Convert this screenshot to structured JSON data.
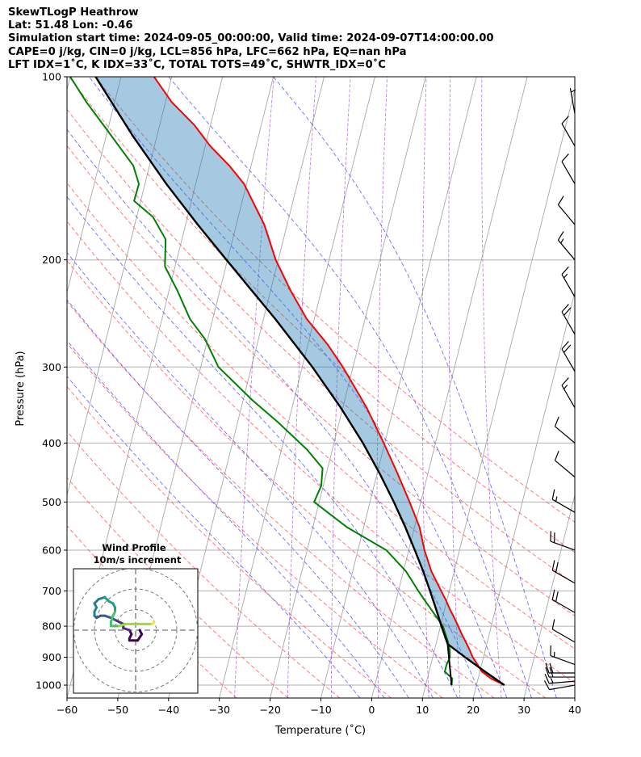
{
  "header": {
    "line1": "SkewTLogP Heathrow",
    "line2": "Lat: 51.48   Lon: -0.46",
    "line3": "Simulation start time: 2024-09-05_00:00:00, Valid time: 2024-09-07T14:00:00.00",
    "line4": "CAPE=0 j/kg, CIN=0 j/kg, LCL=856 hPa, LFC=662 hPa, EQ=nan hPa",
    "line5": "LFT IDX=1$^\\circ$C, K IDX=33$^\\circ$C, TOTAL TOTS=49$^\\circ$C, SHWTR_IDX=0$^\\circ$C"
  },
  "header_display": {
    "line5": "LFT IDX=1˚C, K IDX=33˚C, TOTAL TOTS=49˚C, SHWTR_IDX=0˚C"
  },
  "chart_data": {
    "type": "skewt-logp",
    "xlabel": "Temperature (˚C)",
    "ylabel": "Pressure (hPa)",
    "xlim": [
      -60,
      40
    ],
    "ylim": [
      1050,
      100
    ],
    "skew_per_decade_c": 30,
    "x_ticks": [
      "−60",
      "−50",
      "−40",
      "−30",
      "−20",
      "−10",
      "0",
      "10",
      "20",
      "30",
      "40"
    ],
    "x_tick_values": [
      -60,
      -50,
      -40,
      -30,
      -20,
      -10,
      0,
      10,
      20,
      30,
      40
    ],
    "y_ticks": [
      "100",
      "200",
      "300",
      "400",
      "500",
      "600",
      "700",
      "800",
      "900",
      "1000"
    ],
    "y_tick_values": [
      100,
      200,
      300,
      400,
      500,
      600,
      700,
      800,
      900,
      1000
    ],
    "isotherms": [
      -140,
      -130,
      -120,
      -110,
      -100,
      -90,
      -80,
      -70,
      -60,
      -50,
      -40,
      -30,
      -20,
      -10,
      0,
      10,
      20,
      30,
      40
    ],
    "dry_adiabats_c": [
      -30,
      -20,
      -10,
      0,
      10,
      20,
      30,
      40,
      50,
      60,
      70,
      80,
      90
    ],
    "moist_adiabats_c": [
      -5,
      0,
      5,
      10,
      15,
      20,
      25,
      30,
      35
    ],
    "mixing_ratios_gkg": [
      0.4,
      1,
      2,
      4,
      8,
      12,
      20
    ],
    "temperature": {
      "color": "#ff0000",
      "p": [
        1000,
        975,
        950,
        925,
        900,
        875,
        850,
        825,
        800,
        775,
        750,
        725,
        700,
        650,
        600,
        550,
        500,
        450,
        400,
        350,
        300,
        275,
        250,
        225,
        200,
        175,
        150,
        140,
        130,
        120,
        110,
        100
      ],
      "t": [
        25.5,
        22.5,
        20.4,
        19.2,
        17.9,
        16.9,
        15.8,
        14.6,
        13.5,
        12.3,
        11.0,
        9.8,
        8.4,
        5.5,
        3.1,
        1.0,
        -2.2,
        -5.9,
        -10.2,
        -15.3,
        -22.0,
        -26.2,
        -31.5,
        -36.0,
        -40.5,
        -44.5,
        -50.5,
        -54.3,
        -59.0,
        -63.2,
        -68.8,
        -73.5
      ]
    },
    "dewpoint": {
      "color": "#008000",
      "p": [
        1000,
        975,
        950,
        925,
        900,
        875,
        850,
        825,
        800,
        775,
        750,
        725,
        700,
        650,
        600,
        550,
        500,
        470,
        440,
        410,
        370,
        340,
        300,
        270,
        250,
        225,
        205,
        185,
        170,
        160,
        150,
        140,
        130,
        120,
        110,
        100
      ],
      "t": [
        15.1,
        14.9,
        13.1,
        13.1,
        13.4,
        13.0,
        12.3,
        11.4,
        10.5,
        8.9,
        7.3,
        5.6,
        3.9,
        0.5,
        -4.4,
        -13.3,
        -21.0,
        -20.4,
        -21.0,
        -25.0,
        -32.0,
        -38.2,
        -46.5,
        -50.5,
        -54.5,
        -58.3,
        -62.0,
        -63.2,
        -66.8,
        -71.3,
        -71.2,
        -73.2,
        -77.0,
        -81.1,
        -85.6,
        -90.0
      ]
    },
    "parcel_profile": {
      "color": "#000000",
      "p": [
        1000,
        950,
        900,
        856,
        800,
        750,
        700,
        650,
        600,
        550,
        500,
        450,
        400,
        350,
        300,
        250,
        200,
        175,
        150,
        125,
        100
      ],
      "t": [
        25.5,
        21.0,
        16.4,
        12.3,
        10.2,
        8.3,
        6.2,
        3.9,
        1.2,
        -1.8,
        -5.3,
        -9.4,
        -14.3,
        -20.4,
        -28.0,
        -37.7,
        -50.2,
        -57.6,
        -65.8,
        -74.8,
        -85.0
      ]
    },
    "lcl_segment": {
      "color": "#000000",
      "p": [
        1000,
        856
      ],
      "t": [
        15.1,
        12.3
      ]
    },
    "cape_cin_shading": {
      "color": "#1f77b4",
      "note": "area between parcel and environment temperature"
    },
    "wind_barbs": [
      {
        "p": 1000,
        "speed_kt": 10,
        "dir_deg": 260
      },
      {
        "p": 985,
        "speed_kt": 15,
        "dir_deg": 265
      },
      {
        "p": 970,
        "speed_kt": 20,
        "dir_deg": 270
      },
      {
        "p": 955,
        "speed_kt": 20,
        "dir_deg": 270
      },
      {
        "p": 925,
        "speed_kt": 15,
        "dir_deg": 290
      },
      {
        "p": 850,
        "speed_kt": 10,
        "dir_deg": 300
      },
      {
        "p": 760,
        "speed_kt": 20,
        "dir_deg": 300
      },
      {
        "p": 680,
        "speed_kt": 20,
        "dir_deg": 300
      },
      {
        "p": 600,
        "speed_kt": 20,
        "dir_deg": 290
      },
      {
        "p": 520,
        "speed_kt": 15,
        "dir_deg": 300
      },
      {
        "p": 455,
        "speed_kt": 10,
        "dir_deg": 310
      },
      {
        "p": 400,
        "speed_kt": 10,
        "dir_deg": 310
      },
      {
        "p": 350,
        "speed_kt": 15,
        "dir_deg": 330
      },
      {
        "p": 305,
        "speed_kt": 20,
        "dir_deg": 330
      },
      {
        "p": 265,
        "speed_kt": 20,
        "dir_deg": 330
      },
      {
        "p": 230,
        "speed_kt": 15,
        "dir_deg": 330
      },
      {
        "p": 200,
        "speed_kt": 15,
        "dir_deg": 320
      },
      {
        "p": 175,
        "speed_kt": 10,
        "dir_deg": 320
      },
      {
        "p": 150,
        "speed_kt": 10,
        "dir_deg": 330
      },
      {
        "p": 130,
        "speed_kt": 10,
        "dir_deg": 330
      },
      {
        "p": 115,
        "speed_kt": 5,
        "dir_deg": 350
      }
    ],
    "hodograph": {
      "title": "Wind Profile",
      "subtitle": "10m/s increment",
      "ring_radii_ms": [
        10,
        20,
        30
      ],
      "u": [
        2,
        3,
        1,
        -3,
        -3,
        -2,
        -3,
        -6,
        -6,
        -6,
        -8,
        -10,
        -12,
        -15,
        -17,
        -19,
        -20,
        -20,
        -19,
        -20,
        -18,
        -15,
        -14,
        -13,
        -11,
        -10,
        -10,
        -11,
        -12,
        -12,
        -10,
        -8,
        -5,
        -2,
        3,
        6,
        8,
        9
      ],
      "v": [
        0,
        -2,
        -5,
        -5,
        -4,
        -2,
        0,
        1,
        2,
        3,
        4,
        5,
        6,
        7,
        7,
        6,
        7,
        9,
        11,
        13,
        15,
        16,
        15,
        14,
        13,
        11,
        9,
        7,
        4,
        2,
        2,
        2,
        3,
        3,
        3,
        3,
        3,
        4
      ]
    }
  }
}
